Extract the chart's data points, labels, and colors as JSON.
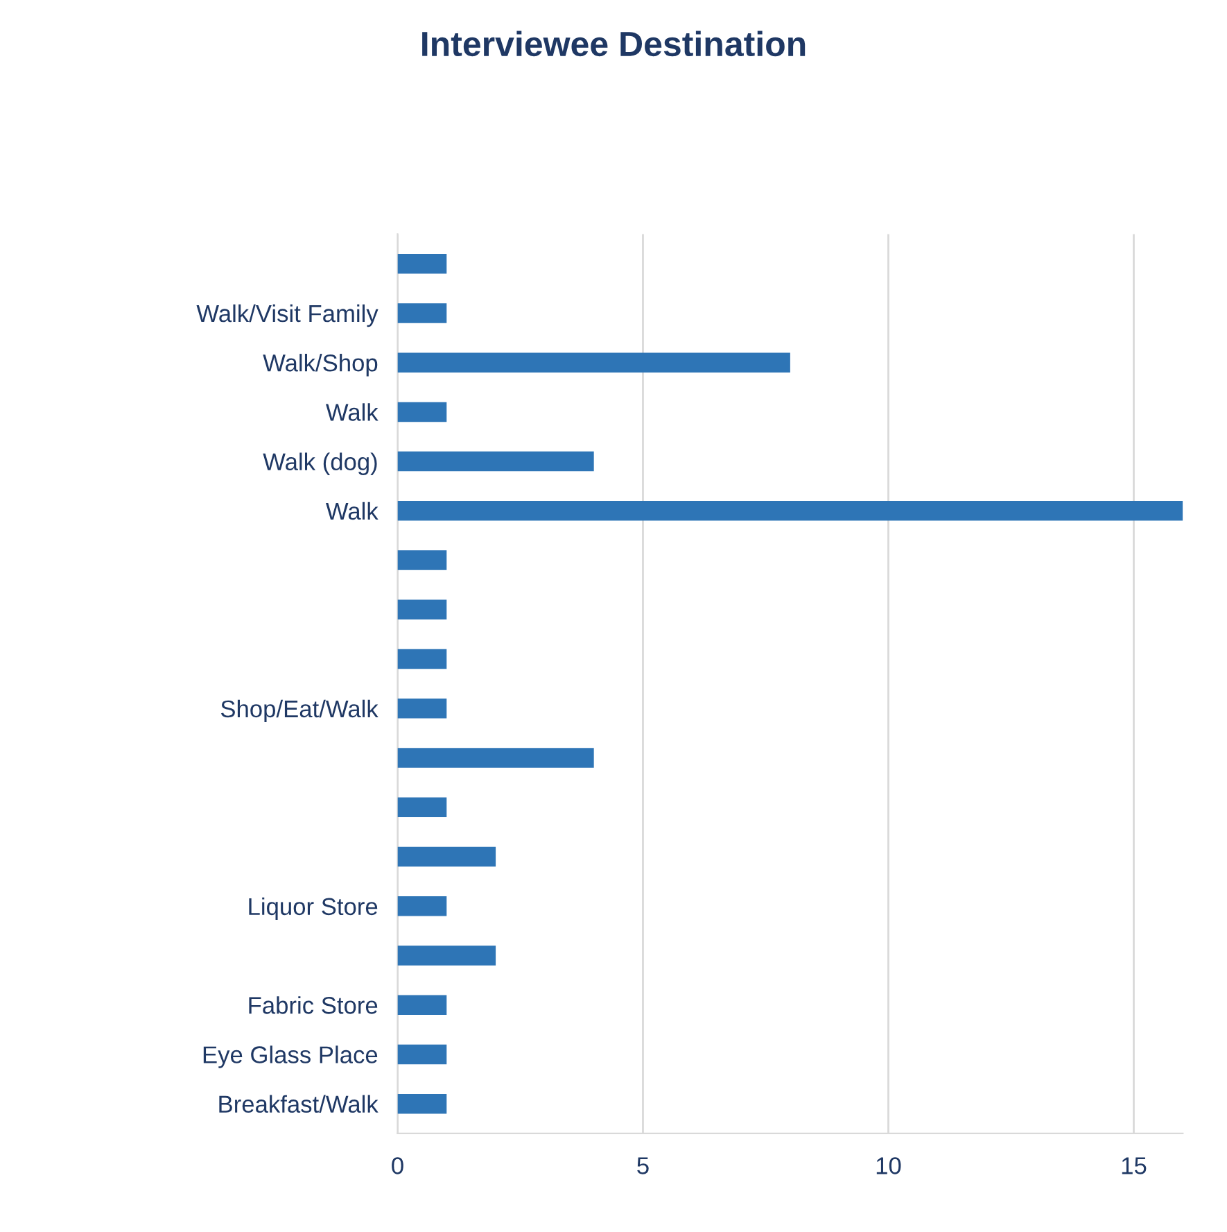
{
  "chart_data": {
    "type": "bar",
    "orientation": "horizontal",
    "title": "Interviewee Destination",
    "categories": [
      null,
      "Walk/Visit Family",
      "Walk/Shop",
      "Walk",
      "Walk (dog)",
      "Walk",
      null,
      null,
      null,
      "Shop/Eat/Walk",
      null,
      null,
      null,
      "Liquor Store",
      null,
      "Fabric Store",
      "Eye Glass Place",
      "Breakfast/Walk"
    ],
    "values": [
      1,
      1,
      8,
      1,
      4,
      16,
      1,
      1,
      1,
      1,
      4,
      1,
      2,
      1,
      2,
      1,
      1,
      1
    ],
    "color": "#2e75b6",
    "xlim": [
      0,
      16
    ],
    "xticks": [
      0,
      5,
      10,
      15
    ],
    "grid": "x",
    "legend": false
  }
}
